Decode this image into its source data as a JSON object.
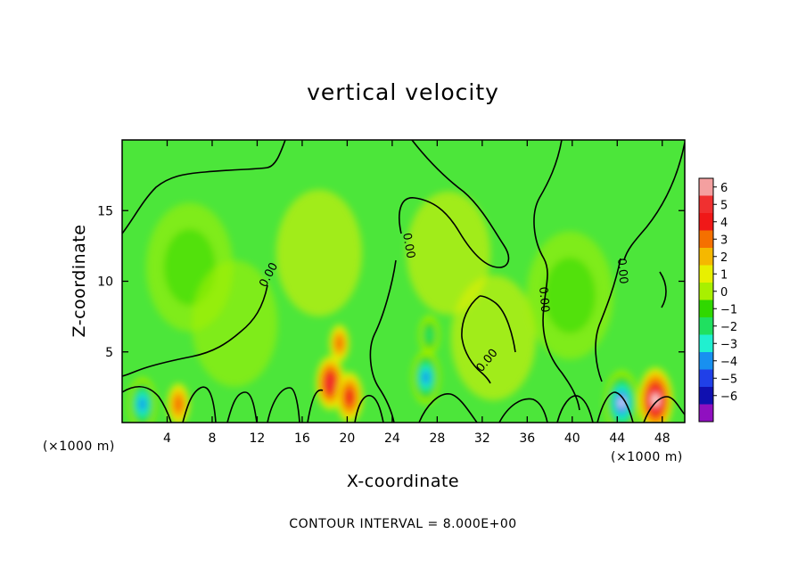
{
  "chart_data": {
    "type": "heatmap",
    "title": "vertical velocity",
    "xlabel": "X-coordinate",
    "ylabel": "Z-coordinate",
    "x_unit_label_left": "(×1000 m)",
    "x_unit_label_right": "(×1000 m)",
    "xlim": [
      0,
      50
    ],
    "ylim": [
      0,
      20
    ],
    "xticks": [
      4,
      8,
      12,
      16,
      20,
      24,
      28,
      32,
      36,
      40,
      44,
      48
    ],
    "yticks": [
      5,
      10,
      15
    ],
    "colorbar": {
      "levels": [
        6,
        5,
        4,
        3,
        2,
        1,
        0,
        -1,
        -2,
        -3,
        -4,
        -5,
        -6
      ],
      "labels": [
        "6",
        "5",
        "4",
        "3",
        "2",
        "1",
        "0",
        "−1",
        "−2",
        "−3",
        "−4",
        "−5",
        "−6"
      ],
      "colors": [
        "#f4a0a0",
        "#f03030",
        "#f01818",
        "#f57000",
        "#f5b800",
        "#e8f000",
        "#a8f000",
        "#30d800",
        "#20e060",
        "#20f0d0",
        "#1890f0",
        "#2040e8",
        "#1010b0",
        "#9010c0"
      ]
    },
    "contour_label": "0.00",
    "contour_interval_text": "CONTOUR INTERVAL = 8.000E+00",
    "features": [
      {
        "x": 1.8,
        "z": 1.3,
        "w": -4.5
      },
      {
        "x": 5.0,
        "z": 1.3,
        "w": 2.8
      },
      {
        "x": 18.5,
        "z": 2.8,
        "w": 4.5
      },
      {
        "x": 20.2,
        "z": 1.8,
        "w": 4.0
      },
      {
        "x": 19.3,
        "z": 5.6,
        "w": 2.2
      },
      {
        "x": 27.0,
        "z": 3.2,
        "w": -4.5
      },
      {
        "x": 27.3,
        "z": 6.2,
        "w": -2.5
      },
      {
        "x": 33.0,
        "z": 6.0,
        "w": 0.8
      },
      {
        "x": 44.4,
        "z": 1.4,
        "w": -6.0
      },
      {
        "x": 47.4,
        "z": 1.6,
        "w": 6.0
      },
      {
        "x": 6.0,
        "z": 11.0,
        "w": -1.3
      },
      {
        "x": 10.0,
        "z": 7.0,
        "w": -1.0
      },
      {
        "x": 39.8,
        "z": 9.0,
        "w": -1.2
      },
      {
        "x": 17.5,
        "z": 12.0,
        "w": 1.0
      },
      {
        "x": 29.0,
        "z": 12.0,
        "w": 0.5
      }
    ]
  }
}
